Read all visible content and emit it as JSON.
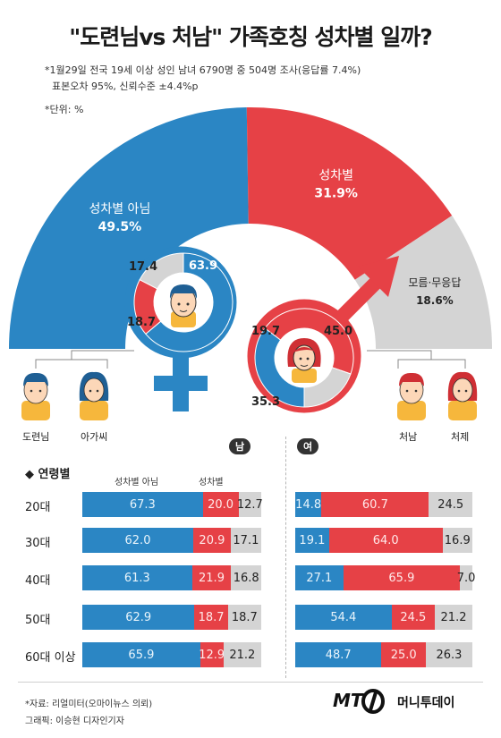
{
  "title": "\"도련님vs 처남\" 가족호칭 성차별 일까?",
  "notes": {
    "survey_line1": "*1월29일 전국 19세 이상 성인 남녀 6790명 중 504명 조사(응답률 7.4%)",
    "survey_line2": "표본오차 95%, 신뢰수준 ±4.4%p",
    "unit": "*단위: %"
  },
  "colors": {
    "blue": "#2b86c4",
    "red": "#e64146",
    "gray": "#d4d4d4",
    "skin": "#fcd7b8",
    "hair_blue": "#1f5f94",
    "hair_red": "#cf2f34"
  },
  "chart_data": [
    {
      "type": "pie",
      "title": "",
      "slices": [
        {
          "label": "성차별 아님",
          "value": 49.5,
          "value_text": "49.5%"
        },
        {
          "label": "성차별",
          "value": 31.9,
          "value_text": "31.9%"
        },
        {
          "label": "모름·무응답",
          "value": 18.6,
          "value_text": "18.6%"
        }
      ]
    },
    {
      "type": "pie",
      "gender": "남",
      "slices": [
        {
          "label": "성차별 아님",
          "value": 63.9
        },
        {
          "label": "성차별",
          "value": 18.7
        },
        {
          "label": "모름·무응답",
          "value": 17.4
        }
      ]
    },
    {
      "type": "pie",
      "gender": "여",
      "slices": [
        {
          "label": "성차별 아님",
          "value": 35.3
        },
        {
          "label": "성차별",
          "value": 45.0
        },
        {
          "label": "모름·무응답",
          "value": 19.7
        }
      ]
    },
    {
      "type": "bar",
      "stacked": true,
      "orientation": "horizontal",
      "gender": "남",
      "title": "연령별",
      "categories": [
        "20대",
        "30대",
        "40대",
        "50대",
        "60대 이상"
      ],
      "series": [
        {
          "name": "성차별 아님",
          "values": [
            67.3,
            62.0,
            61.3,
            62.9,
            65.9
          ]
        },
        {
          "name": "성차별",
          "values": [
            20.0,
            20.9,
            21.9,
            18.7,
            12.9
          ]
        },
        {
          "name": "",
          "values": [
            12.7,
            17.1,
            16.8,
            18.7,
            21.2
          ]
        }
      ]
    },
    {
      "type": "bar",
      "stacked": true,
      "orientation": "horizontal",
      "gender": "여",
      "categories": [
        "20대",
        "30대",
        "40대",
        "50대",
        "60대 이상"
      ],
      "series": [
        {
          "name": "",
          "values": [
            14.8,
            19.1,
            27.1,
            54.4,
            48.7
          ]
        },
        {
          "name": "",
          "values": [
            60.7,
            64.0,
            65.9,
            24.5,
            25.0
          ]
        },
        {
          "name": "",
          "values": [
            24.5,
            16.9,
            7.0,
            21.2,
            26.3
          ]
        }
      ]
    }
  ],
  "value_texts": {
    "male": [
      [
        "67.3",
        "20.0",
        "12.7"
      ],
      [
        "62.0",
        "20.9",
        "17.1"
      ],
      [
        "61.3",
        "21.9",
        "16.8"
      ],
      [
        "62.9",
        "18.7",
        "18.7"
      ],
      [
        "65.9",
        "12.9",
        "21.2"
      ]
    ],
    "female": [
      [
        "14.8",
        "60.7",
        "24.5"
      ],
      [
        "19.1",
        "64.0",
        "16.9"
      ],
      [
        "27.1",
        "65.9",
        "7.0"
      ],
      [
        "54.4",
        "24.5",
        "21.2"
      ],
      [
        "48.7",
        "25.0",
        "26.3"
      ]
    ]
  },
  "people": {
    "left": [
      "도련님",
      "아가씨"
    ],
    "right": [
      "처남",
      "처제"
    ]
  },
  "section": {
    "age_header": "◆ 연령별",
    "male_pill": "남",
    "female_pill": "여",
    "col_not": "성차별 아님",
    "col_yes": "성차별"
  },
  "footer": {
    "source": "*자료: 리얼미터(오마이뉴스 의뢰)",
    "graphic": "그래픽: 이승현 디자인기자",
    "logo_mt": "MT",
    "logo_name": "머니투데이"
  }
}
